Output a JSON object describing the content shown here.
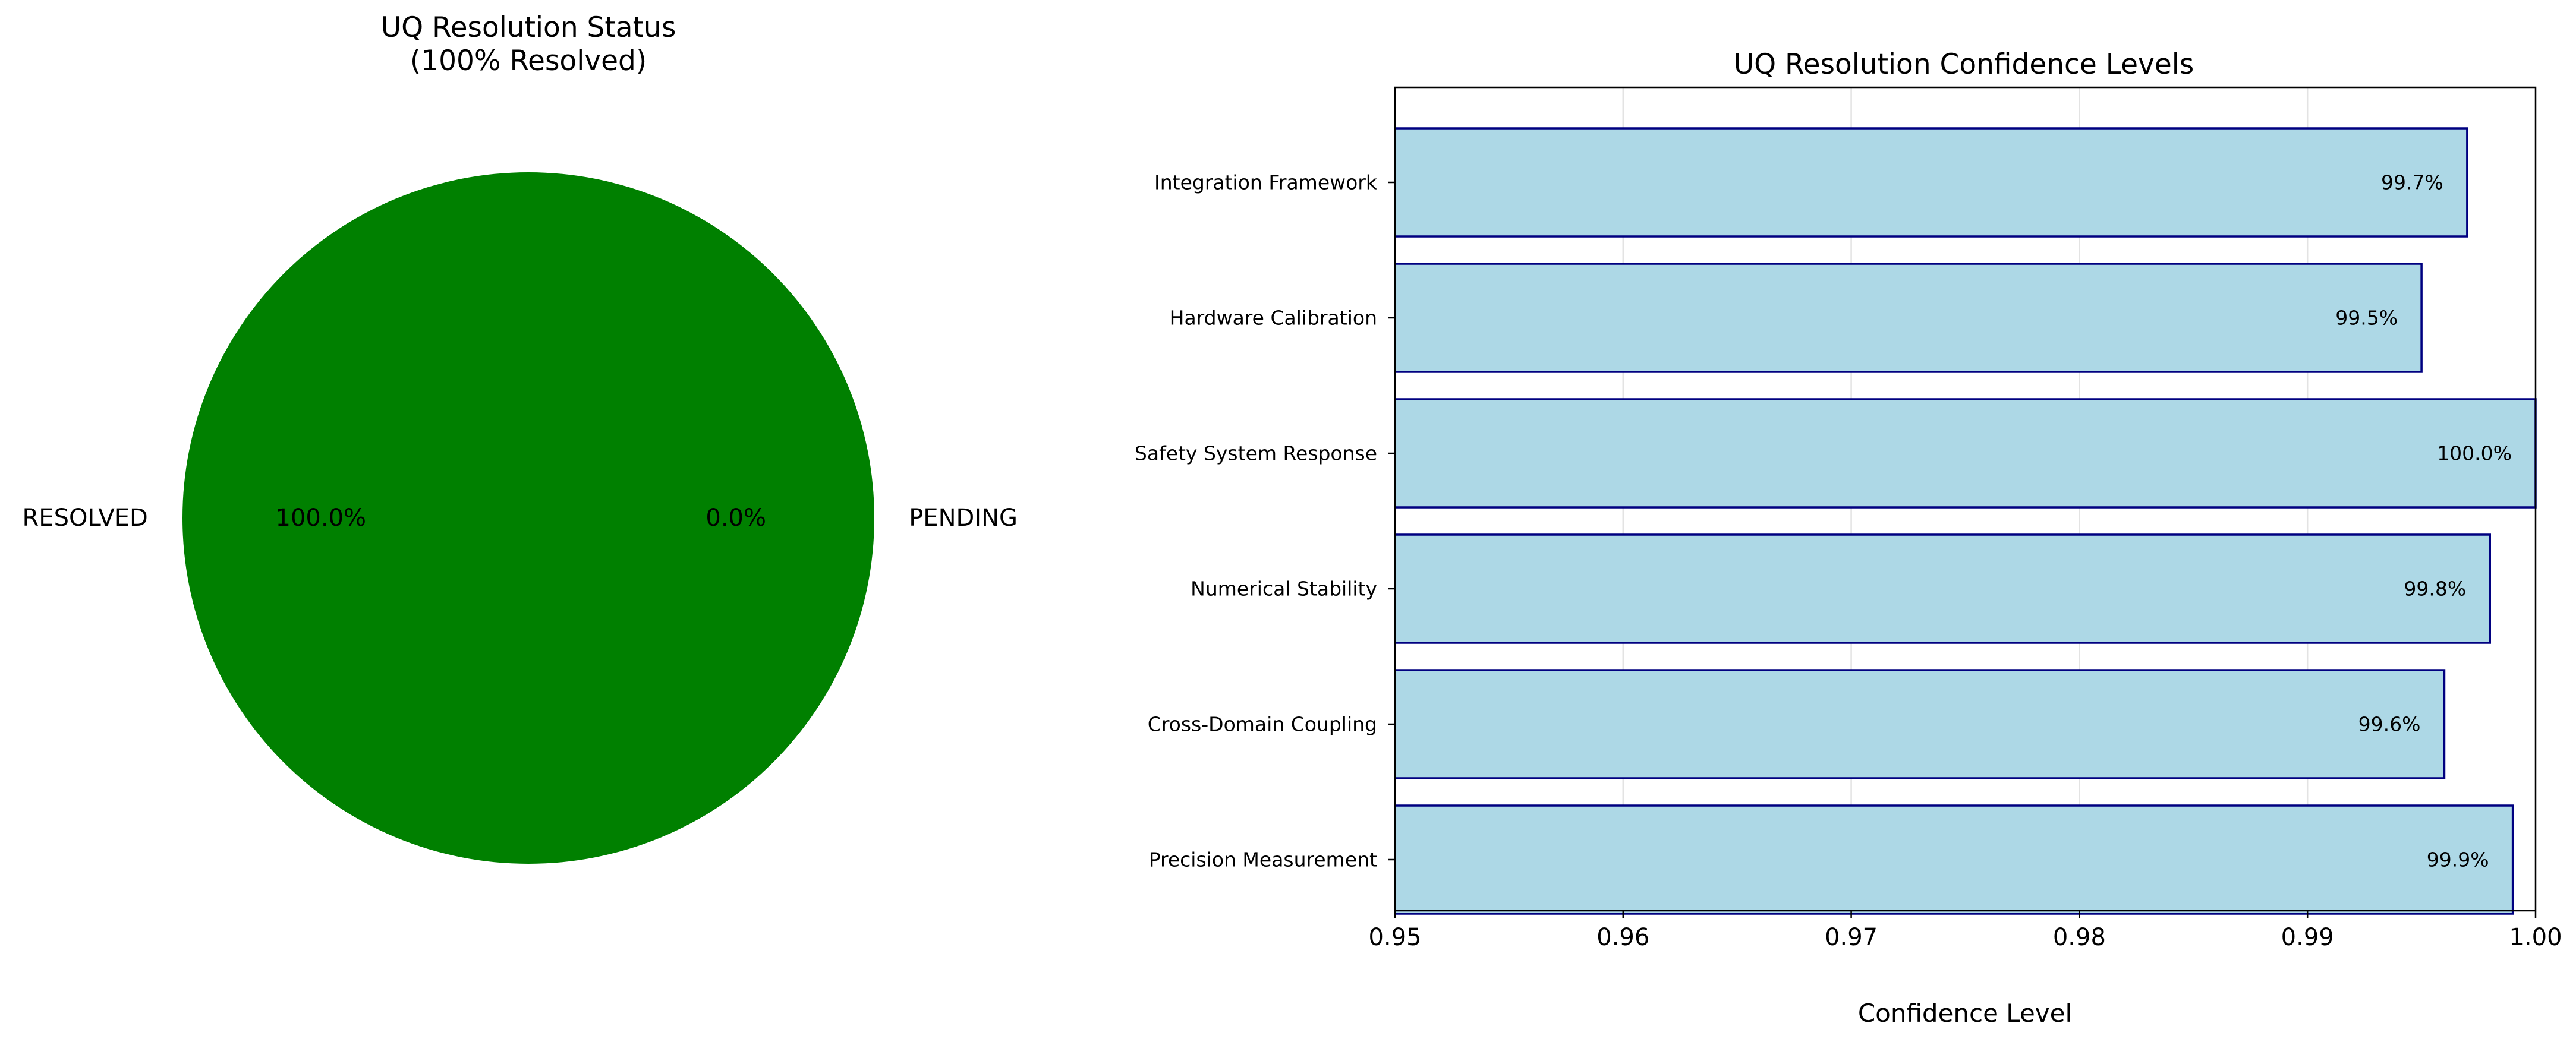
{
  "chart_data": [
    {
      "type": "pie",
      "title": "UQ Resolution Status\n(100% Resolved)",
      "slices": [
        {
          "label": "RESOLVED",
          "value": 100.0,
          "pct_label": "100.0%",
          "color": "#008000"
        },
        {
          "label": "PENDING",
          "value": 0.0,
          "pct_label": "0.0%",
          "color": "#ff0000"
        }
      ]
    },
    {
      "type": "bar",
      "orientation": "horizontal",
      "title": "UQ Resolution Confidence Levels",
      "xlabel": "Confidence Level",
      "xlim": [
        0.95,
        1.0
      ],
      "xticks": [
        "0.95",
        "0.96",
        "0.97",
        "0.98",
        "0.99",
        "1.00"
      ],
      "grid": "x",
      "bar_color": "#add8e6",
      "edge_color": "#000080",
      "categories": [
        "Integration Framework",
        "Hardware Calibration",
        "Safety System Response",
        "Numerical Stability",
        "Cross-Domain Coupling",
        "Precision Measurement"
      ],
      "values": [
        0.997,
        0.995,
        1.0,
        0.998,
        0.996,
        0.999
      ],
      "value_labels": [
        "99.7%",
        "99.5%",
        "100.0%",
        "99.8%",
        "99.6%",
        "99.9%"
      ]
    }
  ]
}
